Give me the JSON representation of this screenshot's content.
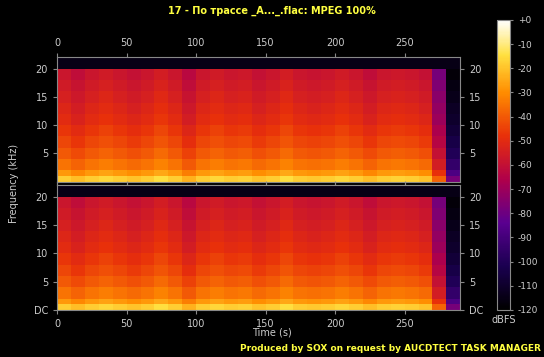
{
  "title": "17 - По трассе _А..._.flac: MPEG 100%",
  "footer": "Produced by SOX on request by AUCDTECT TASK MANAGER",
  "xlabel": "Time (s)",
  "ylabel": "Frequency (kHz)",
  "colorbar": {
    "label": "dBFS",
    "range": [
      -120,
      0
    ],
    "ticks": [
      {
        "value": 0,
        "label": "+0"
      },
      -10,
      -20,
      -30,
      -40,
      -50,
      -60,
      -70,
      -80,
      -90,
      -100,
      -110,
      -120
    ]
  },
  "chart_data": [
    {
      "type": "heatmap",
      "xlim": [
        0,
        290
      ],
      "ylim": [
        0,
        22.05
      ],
      "xticks": [
        0,
        50,
        100,
        150,
        200,
        250
      ],
      "yticks": [
        5,
        10,
        15,
        20
      ],
      "time_edges": [
        0,
        10,
        20,
        30,
        40,
        50,
        60,
        70,
        80,
        90,
        100,
        110,
        120,
        130,
        140,
        150,
        160,
        170,
        180,
        190,
        200,
        210,
        220,
        230,
        240,
        250,
        260,
        270,
        280,
        290
      ],
      "frequency_edges": [
        0,
        1,
        2,
        4,
        6,
        8,
        10,
        12,
        14,
        16,
        18,
        20,
        22.05
      ],
      "cells": [
        [
          -18,
          -21,
          -18,
          -16,
          -18,
          -20,
          -18,
          -15,
          -18,
          -23,
          -18,
          -16,
          -18,
          -17,
          -20,
          -18,
          -15,
          -18,
          -19,
          -18,
          -16,
          -18,
          -21,
          -18,
          -17,
          -18,
          -20,
          -38,
          -78
        ],
        [
          -28,
          -31,
          -28,
          -26,
          -28,
          -30,
          -28,
          -25,
          -28,
          -33,
          -28,
          -26,
          -28,
          -27,
          -30,
          -28,
          -25,
          -28,
          -29,
          -28,
          -26,
          -28,
          -31,
          -28,
          -27,
          -28,
          -30,
          -48,
          -88
        ],
        [
          -35,
          -38,
          -35,
          -33,
          -35,
          -37,
          -35,
          -32,
          -35,
          -40,
          -35,
          -33,
          -35,
          -34,
          -37,
          -35,
          -32,
          -35,
          -36,
          -35,
          -33,
          -35,
          -38,
          -35,
          -34,
          -35,
          -37,
          -55,
          -95
        ],
        [
          -40,
          -43,
          -40,
          -38,
          -40,
          -42,
          -40,
          -37,
          -40,
          -45,
          -40,
          -38,
          -40,
          -39,
          -42,
          -40,
          -37,
          -40,
          -41,
          -40,
          -38,
          -40,
          -43,
          -40,
          -39,
          -40,
          -42,
          -60,
          -100
        ],
        [
          -44,
          -47,
          -44,
          -42,
          -44,
          -46,
          -44,
          -41,
          -44,
          -49,
          -44,
          -42,
          -44,
          -43,
          -46,
          -44,
          -41,
          -44,
          -45,
          -44,
          -42,
          -44,
          -47,
          -44,
          -43,
          -44,
          -46,
          -64,
          -104
        ],
        [
          -47,
          -50,
          -47,
          -45,
          -47,
          -49,
          -47,
          -44,
          -47,
          -52,
          -47,
          -45,
          -47,
          -46,
          -49,
          -47,
          -44,
          -47,
          -48,
          -47,
          -45,
          -47,
          -50,
          -47,
          -46,
          -47,
          -49,
          -67,
          -107
        ],
        [
          -50,
          -53,
          -50,
          -48,
          -50,
          -52,
          -50,
          -47,
          -50,
          -55,
          -50,
          -48,
          -50,
          -49,
          -52,
          -50,
          -47,
          -50,
          -51,
          -50,
          -48,
          -50,
          -53,
          -50,
          -49,
          -50,
          -52,
          -70,
          -110
        ],
        [
          -52,
          -55,
          -52,
          -50,
          -52,
          -54,
          -52,
          -49,
          -52,
          -57,
          -52,
          -50,
          -52,
          -51,
          -54,
          -52,
          -49,
          -52,
          -53,
          -52,
          -50,
          -52,
          -55,
          -52,
          -51,
          -52,
          -54,
          -72,
          -112
        ],
        [
          -54,
          -57,
          -54,
          -52,
          -54,
          -56,
          -54,
          -51,
          -54,
          -59,
          -54,
          -52,
          -54,
          -53,
          -56,
          -54,
          -51,
          -54,
          -55,
          -54,
          -52,
          -54,
          -57,
          -54,
          -53,
          -54,
          -56,
          -74,
          -114
        ],
        [
          -56,
          -59,
          -56,
          -54,
          -56,
          -58,
          -56,
          -53,
          -56,
          -61,
          -56,
          -54,
          -56,
          -55,
          -58,
          -56,
          -53,
          -56,
          -57,
          -56,
          -54,
          -56,
          -59,
          -56,
          -55,
          -56,
          -58,
          -76,
          -116
        ],
        [
          -58,
          -61,
          -58,
          -56,
          -58,
          -60,
          -58,
          -55,
          -58,
          -63,
          -58,
          -56,
          -58,
          -57,
          -60,
          -58,
          -55,
          -58,
          -59,
          -58,
          -56,
          -58,
          -61,
          -58,
          -57,
          -58,
          -60,
          -78,
          -118
        ],
        [
          -115,
          -115,
          -115,
          -115,
          -115,
          -115,
          -115,
          -115,
          -115,
          -115,
          -115,
          -115,
          -115,
          -115,
          -115,
          -115,
          -115,
          -115,
          -115,
          -115,
          -115,
          -115,
          -115,
          -115,
          -115,
          -115,
          -115,
          -115,
          -115
        ]
      ]
    },
    {
      "type": "heatmap",
      "xlim": [
        0,
        290
      ],
      "ylim": [
        0,
        22.05
      ],
      "xticks": [
        0,
        50,
        100,
        150,
        200,
        250
      ],
      "yticks": [
        {
          "value": 0,
          "label": "DC"
        },
        5,
        10,
        15,
        20
      ],
      "time_edges": [
        0,
        10,
        20,
        30,
        40,
        50,
        60,
        70,
        80,
        90,
        100,
        110,
        120,
        130,
        140,
        150,
        160,
        170,
        180,
        190,
        200,
        210,
        220,
        230,
        240,
        250,
        260,
        270,
        280,
        290
      ],
      "frequency_edges": [
        0,
        1,
        2,
        4,
        6,
        8,
        10,
        12,
        14,
        16,
        18,
        20,
        22.05
      ],
      "cells": [
        [
          -18,
          -21,
          -18,
          -16,
          -18,
          -20,
          -18,
          -15,
          -18,
          -23,
          -18,
          -16,
          -18,
          -17,
          -20,
          -18,
          -15,
          -18,
          -19,
          -18,
          -16,
          -18,
          -21,
          -18,
          -17,
          -18,
          -20,
          -38,
          -78
        ],
        [
          -28,
          -31,
          -28,
          -26,
          -28,
          -30,
          -28,
          -25,
          -28,
          -33,
          -28,
          -26,
          -28,
          -27,
          -30,
          -28,
          -25,
          -28,
          -29,
          -28,
          -26,
          -28,
          -31,
          -28,
          -27,
          -28,
          -30,
          -48,
          -88
        ],
        [
          -35,
          -38,
          -35,
          -33,
          -35,
          -37,
          -35,
          -32,
          -35,
          -40,
          -35,
          -33,
          -35,
          -34,
          -37,
          -35,
          -32,
          -35,
          -36,
          -35,
          -33,
          -35,
          -38,
          -35,
          -34,
          -35,
          -37,
          -55,
          -95
        ],
        [
          -40,
          -43,
          -40,
          -38,
          -40,
          -42,
          -40,
          -37,
          -40,
          -45,
          -40,
          -38,
          -40,
          -39,
          -42,
          -40,
          -37,
          -40,
          -41,
          -40,
          -38,
          -40,
          -43,
          -40,
          -39,
          -40,
          -42,
          -60,
          -100
        ],
        [
          -44,
          -47,
          -44,
          -42,
          -44,
          -46,
          -44,
          -41,
          -44,
          -49,
          -44,
          -42,
          -44,
          -43,
          -46,
          -44,
          -41,
          -44,
          -45,
          -44,
          -42,
          -44,
          -47,
          -44,
          -43,
          -44,
          -46,
          -64,
          -104
        ],
        [
          -47,
          -50,
          -47,
          -45,
          -47,
          -49,
          -47,
          -44,
          -47,
          -52,
          -47,
          -45,
          -47,
          -46,
          -49,
          -47,
          -44,
          -47,
          -48,
          -47,
          -45,
          -47,
          -50,
          -47,
          -46,
          -47,
          -49,
          -67,
          -107
        ],
        [
          -50,
          -53,
          -50,
          -48,
          -50,
          -52,
          -50,
          -47,
          -50,
          -55,
          -50,
          -48,
          -50,
          -49,
          -52,
          -50,
          -47,
          -50,
          -51,
          -50,
          -48,
          -50,
          -53,
          -50,
          -49,
          -50,
          -52,
          -70,
          -110
        ],
        [
          -52,
          -55,
          -52,
          -50,
          -52,
          -54,
          -52,
          -49,
          -52,
          -57,
          -52,
          -50,
          -52,
          -51,
          -54,
          -52,
          -49,
          -52,
          -53,
          -52,
          -50,
          -52,
          -55,
          -52,
          -51,
          -52,
          -54,
          -72,
          -112
        ],
        [
          -54,
          -57,
          -54,
          -52,
          -54,
          -56,
          -54,
          -51,
          -54,
          -59,
          -54,
          -52,
          -54,
          -53,
          -56,
          -54,
          -51,
          -54,
          -55,
          -54,
          -52,
          -54,
          -57,
          -54,
          -53,
          -54,
          -56,
          -74,
          -114
        ],
        [
          -56,
          -59,
          -56,
          -54,
          -56,
          -58,
          -56,
          -53,
          -56,
          -61,
          -56,
          -54,
          -56,
          -55,
          -58,
          -56,
          -53,
          -56,
          -57,
          -56,
          -54,
          -56,
          -59,
          -56,
          -55,
          -56,
          -58,
          -76,
          -116
        ],
        [
          -58,
          -61,
          -58,
          -56,
          -58,
          -60,
          -58,
          -55,
          -58,
          -63,
          -58,
          -56,
          -58,
          -57,
          -60,
          -58,
          -55,
          -58,
          -59,
          -58,
          -56,
          -58,
          -61,
          -58,
          -57,
          -58,
          -60,
          -78,
          -118
        ],
        [
          -115,
          -115,
          -115,
          -115,
          -115,
          -115,
          -115,
          -115,
          -115,
          -115,
          -115,
          -115,
          -115,
          -115,
          -115,
          -115,
          -115,
          -115,
          -115,
          -115,
          -115,
          -115,
          -115,
          -115,
          -115,
          -115,
          -115,
          -115,
          -115
        ]
      ]
    }
  ]
}
